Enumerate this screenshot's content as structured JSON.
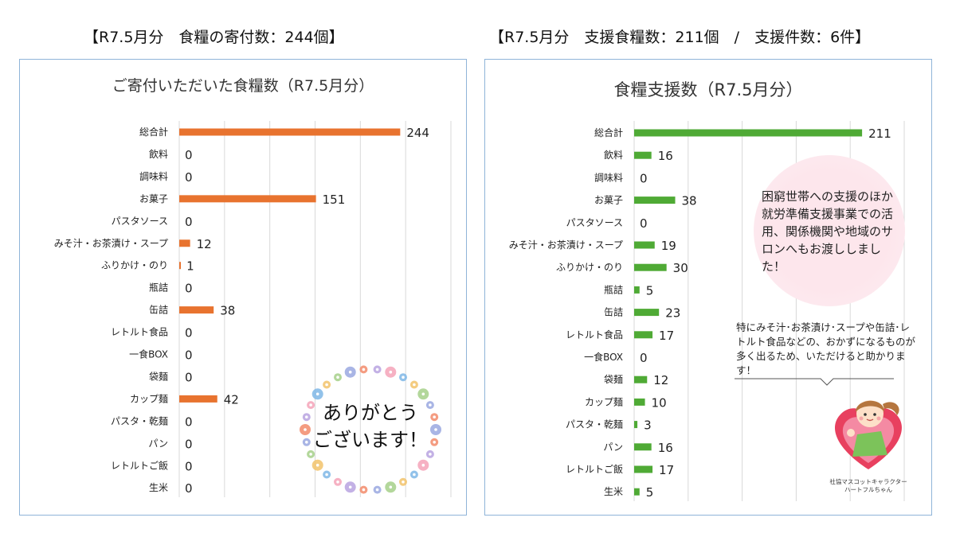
{
  "left_heading": "【R7.5月分　食糧の寄付数：244個】",
  "right_heading": "【R7.5月分　支援食糧数：211個　/　支援件数：6件】",
  "wreath_text": [
    "ありがとう",
    "ございます！"
  ],
  "note_bubble": "困窮世帯への支援のほか就労準備支援事業での活用、関係機関や地域のサロンへもお渡ししました！",
  "note_callout": "特にみそ汁･お茶漬け･スープや缶詰･レトルト食品などの、おかずになるものが多く出るため、いただけると助かります！",
  "mascot_caption": [
    "社協マスコットキャラクター",
    "ハートフルちゃん"
  ],
  "colors": {
    "left_bar": "#e8732f",
    "right_bar": "#4faa35",
    "panel_border": "#8fb4d8",
    "grid": "#d9d9d9"
  },
  "chart_data": [
    {
      "type": "bar",
      "orientation": "horizontal",
      "title": "ご寄付いただいた食糧数（R7.5月分）",
      "categories": [
        "総合計",
        "飲料",
        "調味料",
        "お菓子",
        "パスタソース",
        "みそ汁・お茶漬け・スープ",
        "ふりかけ・のり",
        "瓶詰",
        "缶詰",
        "レトルト食品",
        "一食BOX",
        "袋麺",
        "カップ麺",
        "パスタ・乾麺",
        "パン",
        "レトルトご飯",
        "生米"
      ],
      "values": [
        244,
        0,
        0,
        151,
        0,
        12,
        1,
        0,
        38,
        0,
        0,
        0,
        42,
        0,
        0,
        0,
        0
      ],
      "xlim": [
        0,
        300
      ],
      "grid": true,
      "data_labels": true
    },
    {
      "type": "bar",
      "orientation": "horizontal",
      "title": "食糧支援数（R7.5月分）",
      "categories": [
        "総合計",
        "飲料",
        "調味料",
        "お菓子",
        "パスタソース",
        "みそ汁・お茶漬け・スープ",
        "ふりかけ・のり",
        "瓶詰",
        "缶詰",
        "レトルト食品",
        "一食BOX",
        "袋麺",
        "カップ麺",
        "パスタ・乾麺",
        "パン",
        "レトルトご飯",
        "生米"
      ],
      "values": [
        211,
        16,
        0,
        38,
        0,
        19,
        30,
        5,
        23,
        17,
        0,
        12,
        10,
        3,
        16,
        17,
        5
      ],
      "xlim": [
        0,
        250
      ],
      "grid": true,
      "data_labels": true
    }
  ]
}
